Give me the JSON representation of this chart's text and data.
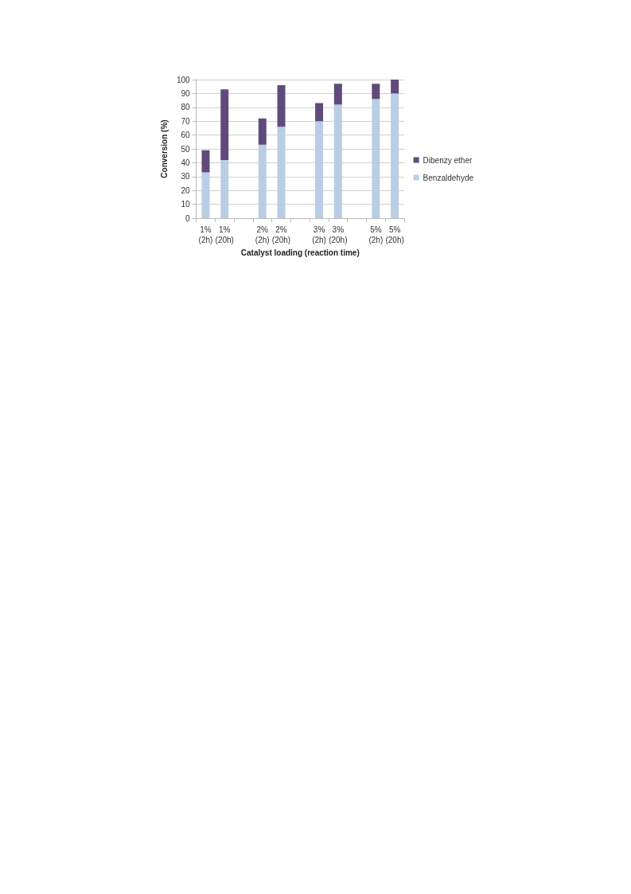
{
  "chart_data": {
    "type": "bar",
    "stacked": true,
    "xlabel": "Catalyst loading (reaction time)",
    "ylabel": "Conversion (%)",
    "categories": [
      "1%\n(2h)",
      "1%\n(20h)",
      null,
      "2%\n(2h)",
      "2%\n(20h)",
      null,
      "3%\n(2h)",
      "3%\n(20h)",
      null,
      "5%\n(2h)",
      "5%\n(20h)"
    ],
    "series": [
      {
        "name": "Benzaldehyde",
        "color": "#b9cde5",
        "values": [
          33,
          42,
          null,
          53,
          66,
          null,
          70,
          82,
          null,
          86,
          90
        ]
      },
      {
        "name": "Dibenzy ether",
        "color": "#604a7b",
        "values": [
          16,
          51,
          null,
          19,
          30,
          null,
          13,
          15,
          null,
          11,
          10
        ]
      }
    ],
    "ylim": [
      0,
      100
    ],
    "yticks": [
      0,
      10,
      20,
      30,
      40,
      50,
      60,
      70,
      80,
      90,
      100
    ],
    "grid": "y",
    "legend": "right"
  }
}
